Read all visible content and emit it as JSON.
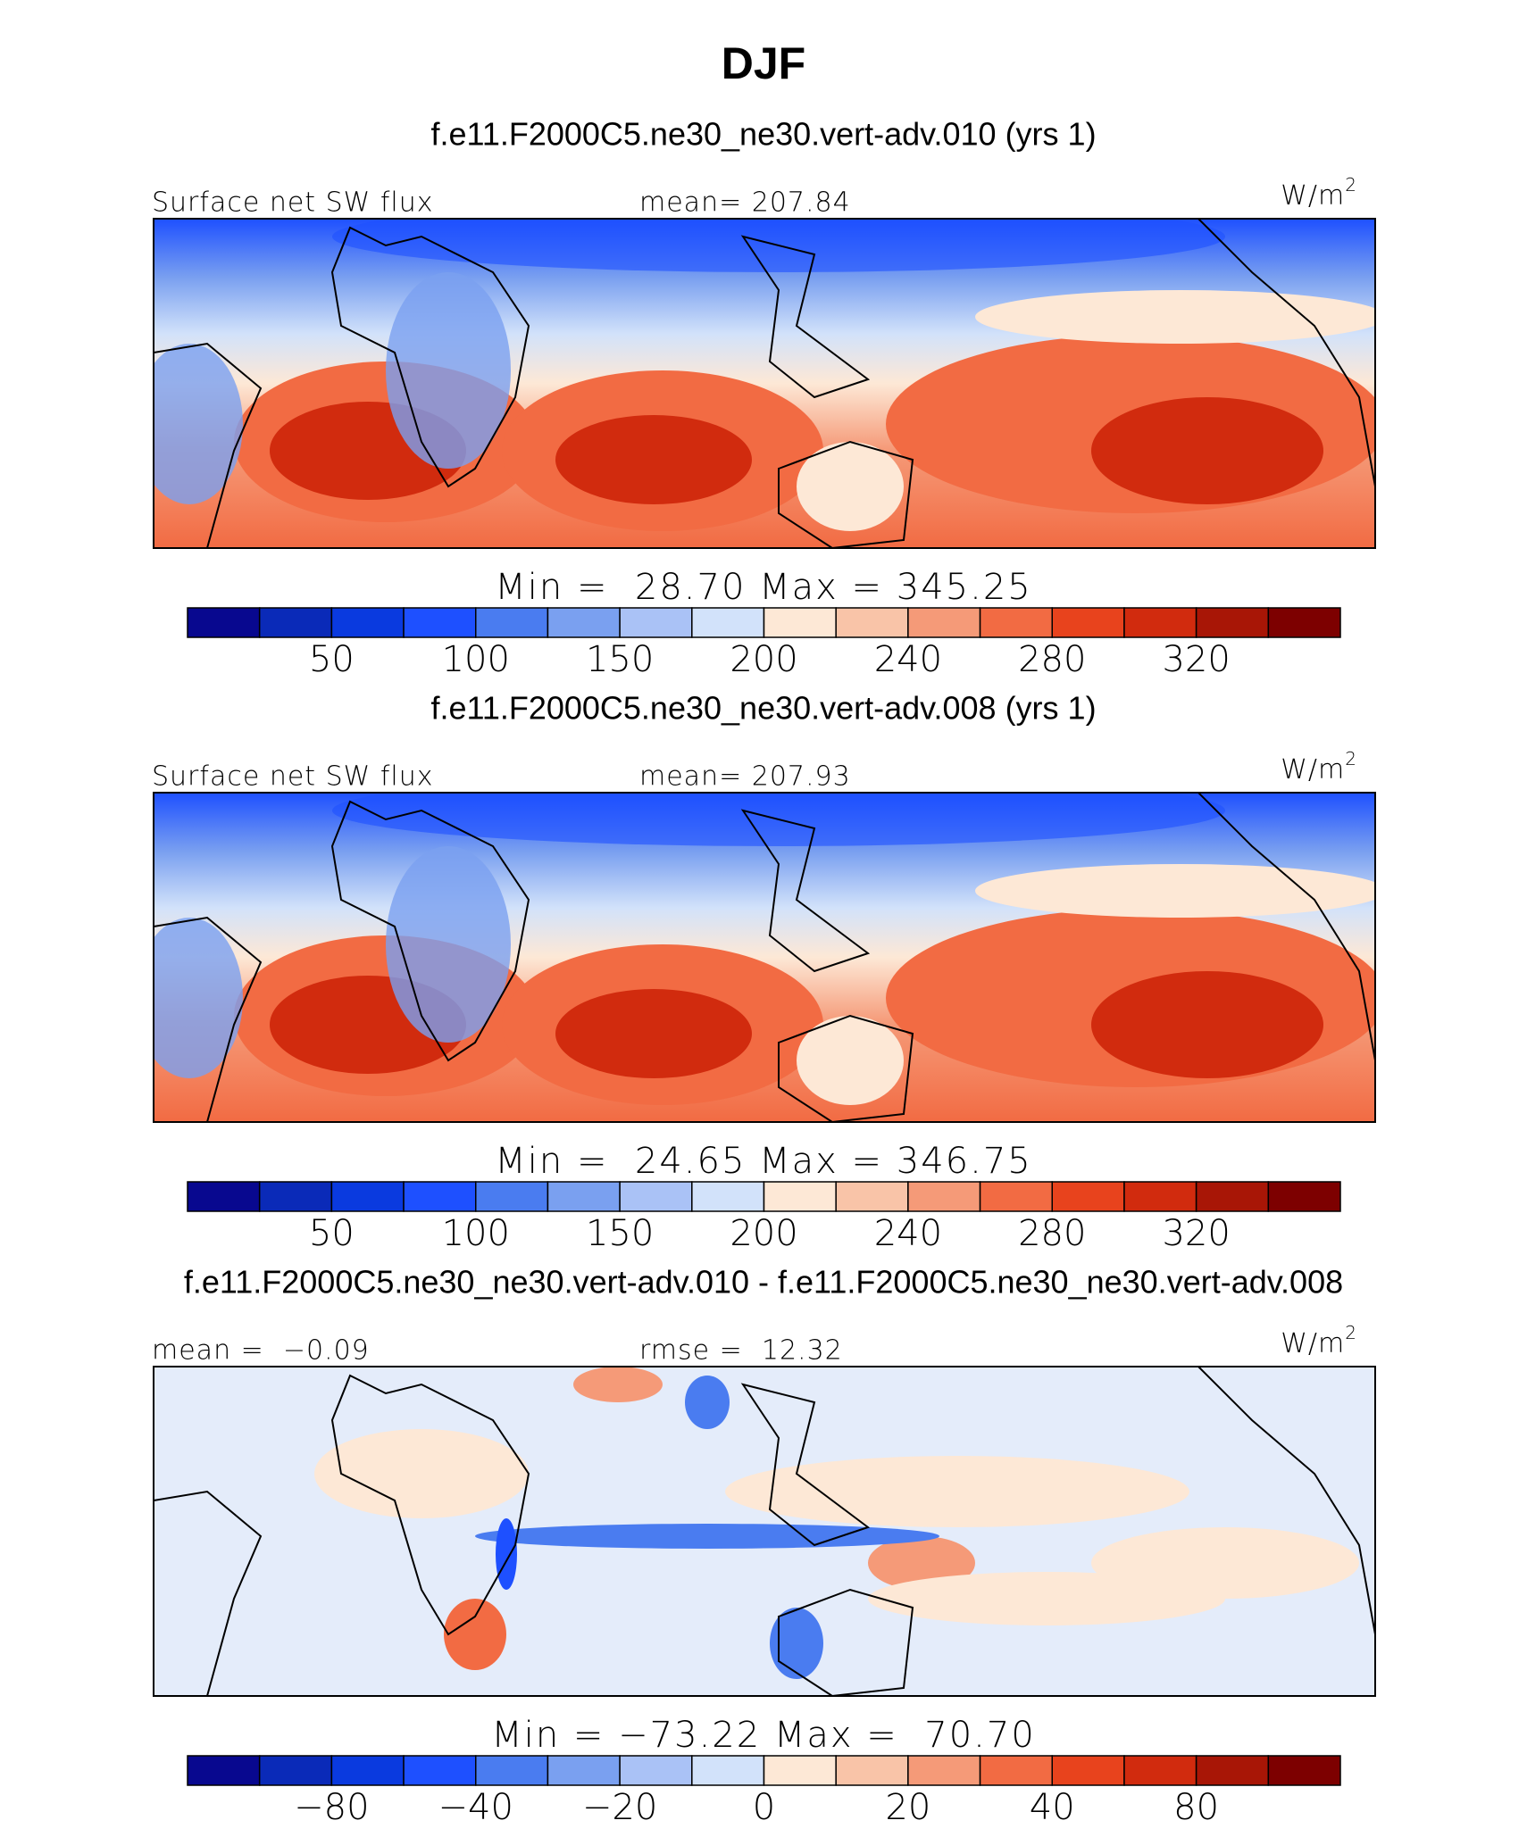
{
  "title": "DJF",
  "panels": [
    {
      "case": "f.e11.F2000C5.ne30_ne30.vert-adv.010 (yrs 1)",
      "left": "Surface net SW flux",
      "center": "mean= 207.84",
      "units": "W/m",
      "units_sup": "2",
      "minmax": "Min =  28.70 Max = 345.25",
      "colorbar_labels": [
        "50",
        "100",
        "150",
        "200",
        "240",
        "280",
        "320"
      ]
    },
    {
      "case": "f.e11.F2000C5.ne30_ne30.vert-adv.008 (yrs 1)",
      "left": "Surface net SW flux",
      "center": "mean= 207.93",
      "units": "W/m",
      "units_sup": "2",
      "minmax": "Min =  24.65 Max = 346.75",
      "colorbar_labels": [
        "50",
        "100",
        "150",
        "200",
        "240",
        "280",
        "320"
      ]
    },
    {
      "case": "f.e11.F2000C5.ne30_ne30.vert-adv.010 - f.e11.F2000C5.ne30_ne30.vert-adv.008",
      "left": "mean =  −0.09",
      "center": "rmse =  12.32",
      "units": "W/m",
      "units_sup": "2",
      "minmax": "Min = −73.22 Max =  70.70",
      "colorbar_labels": [
        "−80",
        "−40",
        "−20",
        "0",
        "20",
        "40",
        "80"
      ]
    }
  ],
  "colorbar_colors": [
    "#08088f",
    "#0a2ab8",
    "#0a3adf",
    "#1e50ff",
    "#4a7cf0",
    "#7aa0f0",
    "#aac2f6",
    "#d2e2fa",
    "#fde8d6",
    "#f9c4a8",
    "#f59a78",
    "#f26b43",
    "#e8431d",
    "#d12b0e",
    "#a81606",
    "#7d0000"
  ]
}
